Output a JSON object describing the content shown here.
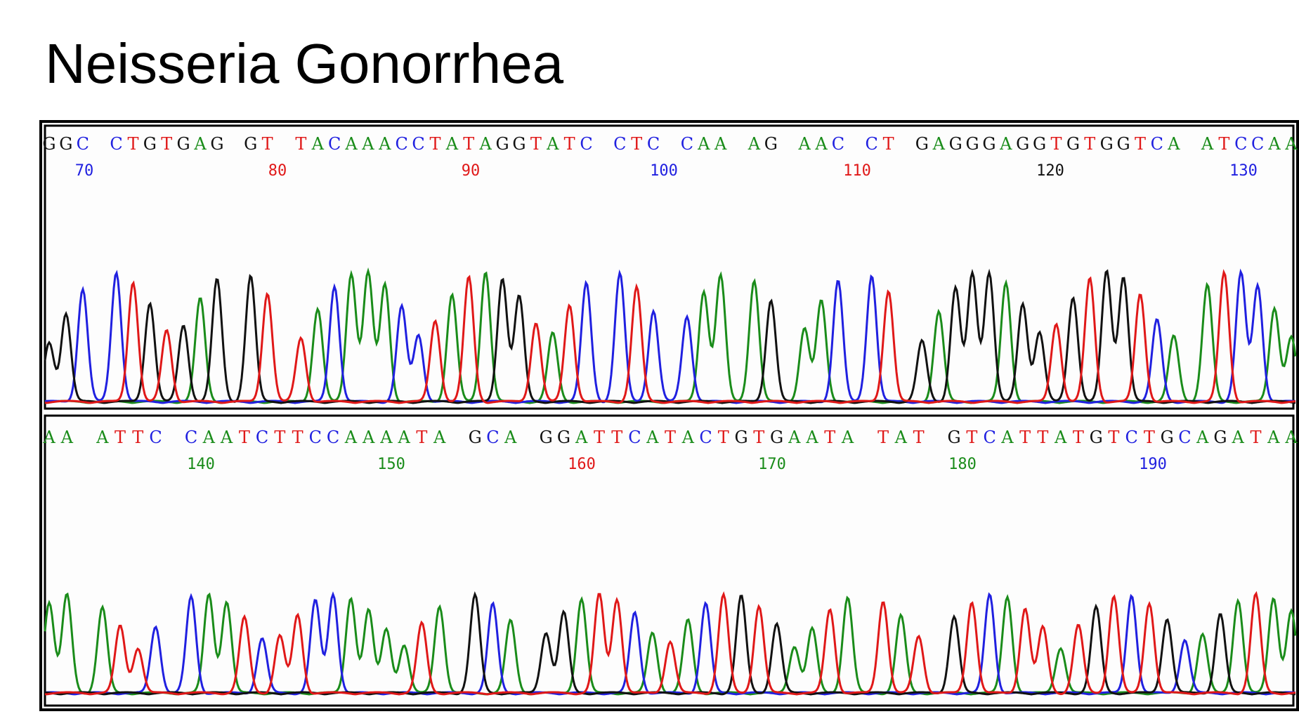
{
  "title": "Neisseria Gonorrhea",
  "base_colors": {
    "A": "#1a8c1a",
    "C": "#2020e0",
    "G": "#111111",
    "T": "#e01818"
  },
  "panels": [
    {
      "sequence": "GGC CTGTGAG GT TACAAACCTATAGGTATC CTC CAA AG AAC CT GAGGGAGGTGTGGTCA ATCCAA",
      "positions": [
        70,
        80,
        90,
        100,
        110,
        120,
        130
      ],
      "position_colors": [
        "#2020e0",
        "#e01818",
        "#e01818",
        "#2020e0",
        "#e01818",
        "#111111",
        "#2020e0"
      ]
    },
    {
      "sequence": "AA ATTC CAATCTTCCAAAATA GCA GGATTCATACTGTGAATA TAT GTCATTATGTCTGCAGATAA",
      "positions": [
        140,
        150,
        160,
        170,
        180,
        190
      ],
      "position_colors": [
        "#1a8c1a",
        "#1a8c1a",
        "#e01818",
        "#1a8c1a",
        "#1a8c1a",
        "#2020e0"
      ]
    }
  ]
}
